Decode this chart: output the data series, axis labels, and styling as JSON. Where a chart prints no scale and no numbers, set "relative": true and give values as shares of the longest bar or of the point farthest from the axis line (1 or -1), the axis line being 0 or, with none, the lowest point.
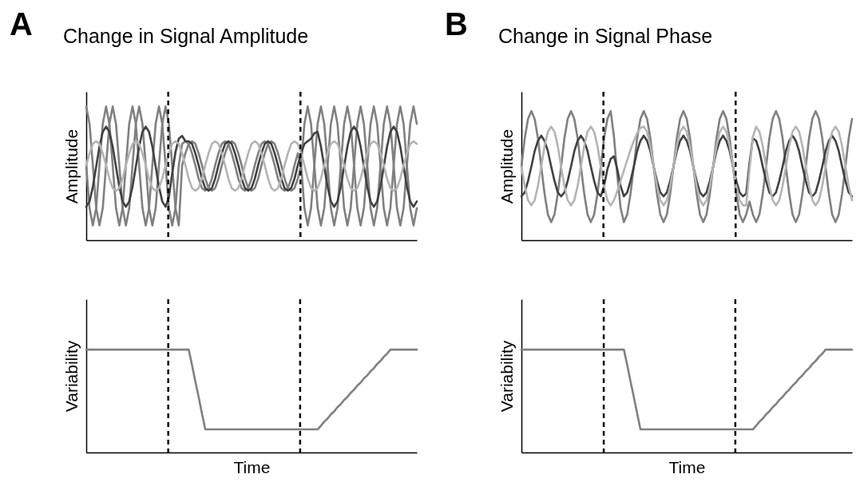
{
  "chart_data": [
    {
      "type": "line",
      "title": "Change in Signal Amplitude",
      "annotations": [
        "A"
      ],
      "ylabel": "Amplitude",
      "relative": true,
      "tick_labels": false,
      "categories": [
        null,
        null,
        null,
        null,
        null,
        null,
        null,
        null,
        null,
        null,
        null,
        null,
        null,
        null,
        null,
        null,
        null,
        null,
        null,
        null,
        null,
        null,
        null,
        null,
        null,
        null,
        null,
        null,
        null,
        null,
        null,
        null,
        null,
        null,
        null,
        null,
        null,
        null,
        null,
        null,
        null,
        null,
        null,
        null,
        null,
        null,
        null,
        null,
        null,
        null,
        null,
        null,
        null,
        null,
        null,
        null,
        null,
        null,
        null,
        null,
        null,
        null,
        null,
        null,
        null,
        null,
        null,
        null,
        null,
        null,
        null,
        null,
        null,
        null,
        null,
        null,
        null,
        null,
        null,
        null,
        null,
        null,
        null,
        null,
        null,
        null,
        null,
        null,
        null,
        null,
        null,
        null,
        null,
        null,
        null,
        null,
        null,
        null,
        null,
        null,
        null
      ],
      "series": [
        {
          "color": "#808080",
          "values": [
            1,
            0.87,
            0.56,
            0.24,
            0.11,
            0.24,
            0.56,
            0.87,
            1,
            0.87,
            0.56,
            0.24,
            0.11,
            0.24,
            0.56,
            0.87,
            1,
            0.87,
            0.56,
            0.24,
            0.11,
            0.24,
            0.56,
            0.87,
            1,
            0.87,
            0.56,
            0.24,
            0.11,
            0.56,
            0.65,
            0.72,
            0.74,
            0.72,
            0.65,
            0.56,
            0.46,
            0.39,
            0.37,
            0.39,
            0.46,
            0.56,
            0.65,
            0.72,
            0.74,
            0.72,
            0.65,
            0.56,
            0.46,
            0.39,
            0.37,
            0.39,
            0.46,
            0.56,
            0.65,
            0.72,
            0.74,
            0.72,
            0.65,
            0.56,
            0.46,
            0.39,
            0.37,
            0.39,
            0.46,
            0.56,
            0.87,
            1,
            0.87,
            0.56,
            0.24,
            0.11,
            0.24,
            0.56,
            0.87,
            1,
            0.87,
            0.56,
            0.24,
            0.11,
            0.24,
            0.56,
            0.87,
            1,
            0.87,
            0.56,
            0.24,
            0.11,
            0.24,
            0.56,
            0.87,
            1,
            0.87,
            0.56,
            0.24,
            0.11,
            0.24,
            0.56,
            0.87,
            1,
            0.87
          ]
        },
        {
          "color": "#808080",
          "values": [
            0.56,
            0.24,
            0.11,
            0.24,
            0.56,
            0.87,
            1,
            0.87,
            0.56,
            0.24,
            0.11,
            0.24,
            0.56,
            0.87,
            1,
            0.87,
            0.56,
            0.24,
            0.11,
            0.24,
            0.56,
            0.87,
            1,
            0.87,
            0.56,
            0.24,
            0.11,
            0.24,
            0.56,
            0.72,
            0.74,
            0.72,
            0.65,
            0.56,
            0.46,
            0.39,
            0.37,
            0.39,
            0.46,
            0.56,
            0.65,
            0.72,
            0.74,
            0.72,
            0.65,
            0.56,
            0.46,
            0.39,
            0.37,
            0.39,
            0.46,
            0.56,
            0.65,
            0.72,
            0.74,
            0.72,
            0.65,
            0.56,
            0.46,
            0.39,
            0.37,
            0.39,
            0.46,
            0.56,
            0.65,
            0.56,
            0.24,
            0.11,
            0.24,
            0.56,
            0.87,
            1,
            0.87,
            0.56,
            0.24,
            0.11,
            0.24,
            0.56,
            0.87,
            1,
            0.87,
            0.56,
            0.24,
            0.11,
            0.24,
            0.56,
            0.87,
            1,
            0.87,
            0.56,
            0.24,
            0.11,
            0.24,
            0.56,
            0.87,
            1,
            0.87,
            0.56,
            0.24,
            0.11,
            0.24
          ]
        },
        {
          "color": "#404040",
          "values": [
            0.25,
            0.29,
            0.4,
            0.55,
            0.7,
            0.81,
            0.85,
            0.81,
            0.7,
            0.55,
            0.4,
            0.29,
            0.25,
            0.29,
            0.4,
            0.55,
            0.7,
            0.81,
            0.85,
            0.81,
            0.7,
            0.55,
            0.4,
            0.29,
            0.25,
            0.32,
            0.5,
            0.66,
            0.76,
            0.78,
            0.74,
            0.74,
            0.72,
            0.65,
            0.56,
            0.46,
            0.39,
            0.37,
            0.39,
            0.46,
            0.56,
            0.65,
            0.72,
            0.74,
            0.72,
            0.65,
            0.56,
            0.46,
            0.39,
            0.37,
            0.39,
            0.46,
            0.56,
            0.65,
            0.72,
            0.74,
            0.72,
            0.65,
            0.56,
            0.46,
            0.39,
            0.37,
            0.39,
            0.46,
            0.56,
            0.65,
            0.72,
            0.74,
            0.76,
            0.8,
            0.81,
            0.7,
            0.55,
            0.4,
            0.29,
            0.25,
            0.29,
            0.4,
            0.55,
            0.7,
            0.81,
            0.85,
            0.81,
            0.7,
            0.55,
            0.4,
            0.29,
            0.25,
            0.29,
            0.4,
            0.55,
            0.7,
            0.81,
            0.85,
            0.81,
            0.7,
            0.55,
            0.4,
            0.29,
            0.25,
            0.29
          ]
        },
        {
          "color": "#b4b4b4",
          "values": [
            0.56,
            0.65,
            0.72,
            0.74,
            0.72,
            0.65,
            0.56,
            0.46,
            0.39,
            0.37,
            0.39,
            0.46,
            0.56,
            0.65,
            0.72,
            0.74,
            0.72,
            0.65,
            0.56,
            0.46,
            0.39,
            0.37,
            0.39,
            0.46,
            0.56,
            0.65,
            0.72,
            0.74,
            0.72,
            0.65,
            0.56,
            0.46,
            0.39,
            0.37,
            0.39,
            0.46,
            0.56,
            0.65,
            0.72,
            0.74,
            0.72,
            0.65,
            0.56,
            0.46,
            0.39,
            0.37,
            0.39,
            0.46,
            0.56,
            0.65,
            0.72,
            0.74,
            0.72,
            0.65,
            0.56,
            0.46,
            0.39,
            0.37,
            0.39,
            0.46,
            0.56,
            0.65,
            0.72,
            0.74,
            0.72,
            0.65,
            0.56,
            0.46,
            0.39,
            0.37,
            0.39,
            0.46,
            0.56,
            0.65,
            0.72,
            0.74,
            0.72,
            0.65,
            0.56,
            0.46,
            0.39,
            0.37,
            0.39,
            0.46,
            0.56,
            0.65,
            0.72,
            0.74,
            0.72,
            0.65,
            0.56,
            0.46,
            0.39,
            0.37,
            0.39,
            0.46,
            0.56,
            0.65,
            0.72,
            0.74,
            0.72
          ]
        }
      ]
    },
    {
      "type": "line",
      "xlabel": "Time",
      "ylabel": "Variability",
      "relative": true,
      "tick_labels": false,
      "categories": [
        null,
        null,
        null,
        null,
        null,
        null,
        null,
        null,
        null,
        null,
        null,
        null,
        null,
        null,
        null,
        null,
        null,
        null,
        null,
        null,
        null,
        null,
        null,
        null,
        null,
        null,
        null,
        null,
        null,
        null,
        null,
        null,
        null,
        null,
        null,
        null,
        null,
        null,
        null,
        null,
        null,
        null,
        null,
        null,
        null,
        null,
        null,
        null,
        null,
        null,
        null,
        null,
        null,
        null,
        null,
        null,
        null,
        null,
        null,
        null,
        null,
        null,
        null,
        null,
        null,
        null,
        null,
        null,
        null,
        null,
        null,
        null,
        null,
        null,
        null,
        null,
        null,
        null,
        null,
        null,
        null,
        null,
        null,
        null,
        null,
        null,
        null,
        null,
        null,
        null,
        null,
        null,
        null,
        null,
        null,
        null,
        null,
        null,
        null,
        null,
        null
      ],
      "series": [
        {
          "color": "#808080",
          "values": [
            1,
            1,
            1,
            1,
            1,
            1,
            1,
            1,
            1,
            1,
            1,
            1,
            1,
            1,
            1,
            1,
            1,
            1,
            1,
            1,
            1,
            1,
            1,
            1,
            1,
            1,
            1,
            1,
            1,
            1,
            1,
            1,
            0.85,
            0.69,
            0.54,
            0.38,
            0.225,
            0.225,
            0.225,
            0.225,
            0.225,
            0.225,
            0.225,
            0.225,
            0.225,
            0.225,
            0.225,
            0.225,
            0.225,
            0.225,
            0.225,
            0.225,
            0.225,
            0.225,
            0.225,
            0.225,
            0.225,
            0.225,
            0.225,
            0.225,
            0.225,
            0.225,
            0.225,
            0.225,
            0.225,
            0.225,
            0.225,
            0.225,
            0.225,
            0.225,
            0.225,
            0.26,
            0.3,
            0.33,
            0.37,
            0.4,
            0.44,
            0.47,
            0.51,
            0.54,
            0.58,
            0.61,
            0.65,
            0.68,
            0.72,
            0.75,
            0.79,
            0.82,
            0.86,
            0.89,
            0.93,
            0.96,
            1,
            1,
            1,
            1,
            1,
            1,
            1,
            1,
            1
          ]
        }
      ]
    },
    {
      "type": "line",
      "title": "Change in Signal Phase",
      "annotations": [
        "B"
      ],
      "ylabel": "Amplitude",
      "relative": true,
      "tick_labels": false,
      "categories": [
        null,
        null,
        null,
        null,
        null,
        null,
        null,
        null,
        null,
        null,
        null,
        null,
        null,
        null,
        null,
        null,
        null,
        null,
        null,
        null,
        null,
        null,
        null,
        null,
        null,
        null,
        null,
        null,
        null,
        null,
        null,
        null,
        null,
        null,
        null,
        null,
        null,
        null,
        null,
        null,
        null,
        null,
        null,
        null,
        null,
        null,
        null,
        null,
        null,
        null,
        null,
        null,
        null,
        null,
        null,
        null,
        null,
        null,
        null,
        null,
        null,
        null,
        null,
        null,
        null,
        null,
        null,
        null,
        null,
        null,
        null,
        null,
        null,
        null,
        null,
        null,
        null,
        null,
        null,
        null,
        null,
        null,
        null,
        null,
        null,
        null,
        null,
        null,
        null,
        null,
        null,
        null,
        null,
        null,
        null,
        null,
        null,
        null,
        null,
        null,
        null
      ],
      "series": [
        {
          "color": "#808080",
          "values": [
            0.57,
            0.79,
            0.94,
            1,
            0.94,
            0.79,
            0.57,
            0.36,
            0.2,
            0.14,
            0.2,
            0.36,
            0.57,
            0.79,
            0.94,
            1,
            0.94,
            0.79,
            0.57,
            0.36,
            0.2,
            0.14,
            0.2,
            0.36,
            0.57,
            0.79,
            0.94,
            1,
            0.8,
            0.5,
            0.25,
            0.14,
            0.2,
            0.36,
            0.57,
            0.79,
            0.94,
            1,
            0.94,
            0.79,
            0.57,
            0.36,
            0.2,
            0.14,
            0.2,
            0.36,
            0.57,
            0.79,
            0.94,
            1,
            0.94,
            0.79,
            0.57,
            0.36,
            0.2,
            0.14,
            0.2,
            0.36,
            0.57,
            0.79,
            0.94,
            1,
            0.94,
            0.79,
            0.57,
            0.36,
            0.2,
            0.14,
            0.2,
            0.3,
            0.2,
            0.14,
            0.2,
            0.36,
            0.57,
            0.79,
            0.94,
            1,
            0.94,
            0.79,
            0.57,
            0.36,
            0.2,
            0.14,
            0.2,
            0.36,
            0.57,
            0.79,
            0.94,
            1,
            0.94,
            0.79,
            0.57,
            0.36,
            0.2,
            0.14,
            0.2,
            0.36,
            0.57,
            0.79,
            0.94
          ]
        },
        {
          "color": "#404040",
          "values": [
            0.34,
            0.37,
            0.46,
            0.57,
            0.69,
            0.77,
            0.81,
            0.77,
            0.69,
            0.57,
            0.46,
            0.37,
            0.34,
            0.37,
            0.46,
            0.57,
            0.69,
            0.77,
            0.81,
            0.77,
            0.69,
            0.57,
            0.46,
            0.37,
            0.34,
            0.42,
            0.55,
            0.63,
            0.65,
            0.55,
            0.42,
            0.34,
            0.37,
            0.46,
            0.57,
            0.69,
            0.77,
            0.81,
            0.77,
            0.69,
            0.57,
            0.46,
            0.37,
            0.34,
            0.37,
            0.46,
            0.57,
            0.69,
            0.77,
            0.81,
            0.77,
            0.69,
            0.57,
            0.46,
            0.37,
            0.34,
            0.37,
            0.46,
            0.57,
            0.69,
            0.77,
            0.81,
            0.77,
            0.69,
            0.57,
            0.46,
            0.37,
            0.34,
            0.36,
            0.6,
            0.79,
            0.77,
            0.69,
            0.57,
            0.46,
            0.37,
            0.34,
            0.37,
            0.46,
            0.57,
            0.69,
            0.77,
            0.81,
            0.77,
            0.69,
            0.57,
            0.46,
            0.37,
            0.34,
            0.37,
            0.46,
            0.57,
            0.69,
            0.77,
            0.81,
            0.77,
            0.69,
            0.57,
            0.46,
            0.37,
            0.34
          ]
        },
        {
          "color": "#b4b4b4",
          "values": [
            0.57,
            0.42,
            0.31,
            0.27,
            0.31,
            0.42,
            0.57,
            0.73,
            0.84,
            0.88,
            0.84,
            0.73,
            0.57,
            0.42,
            0.31,
            0.27,
            0.31,
            0.42,
            0.57,
            0.73,
            0.84,
            0.88,
            0.84,
            0.73,
            0.57,
            0.42,
            0.31,
            0.27,
            0.31,
            0.38,
            0.46,
            0.54,
            0.62,
            0.7,
            0.77,
            0.83,
            0.87,
            0.88,
            0.84,
            0.73,
            0.57,
            0.42,
            0.31,
            0.27,
            0.31,
            0.42,
            0.57,
            0.73,
            0.84,
            0.88,
            0.84,
            0.73,
            0.57,
            0.42,
            0.31,
            0.27,
            0.31,
            0.42,
            0.57,
            0.73,
            0.84,
            0.88,
            0.84,
            0.73,
            0.57,
            0.42,
            0.31,
            0.27,
            0.27,
            0.55,
            0.8,
            0.88,
            0.84,
            0.73,
            0.57,
            0.42,
            0.31,
            0.27,
            0.31,
            0.42,
            0.57,
            0.73,
            0.84,
            0.88,
            0.84,
            0.73,
            0.57,
            0.42,
            0.31,
            0.27,
            0.31,
            0.42,
            0.57,
            0.73,
            0.84,
            0.88,
            0.84,
            0.73,
            0.57,
            0.42,
            0.31
          ]
        }
      ]
    },
    {
      "type": "line",
      "xlabel": "Time",
      "ylabel": "Variability",
      "relative": true,
      "tick_labels": false,
      "categories": [
        null,
        null,
        null,
        null,
        null,
        null,
        null,
        null,
        null,
        null,
        null,
        null,
        null,
        null,
        null,
        null,
        null,
        null,
        null,
        null,
        null,
        null,
        null,
        null,
        null,
        null,
        null,
        null,
        null,
        null,
        null,
        null,
        null,
        null,
        null,
        null,
        null,
        null,
        null,
        null,
        null,
        null,
        null,
        null,
        null,
        null,
        null,
        null,
        null,
        null,
        null,
        null,
        null,
        null,
        null,
        null,
        null,
        null,
        null,
        null,
        null,
        null,
        null,
        null,
        null,
        null,
        null,
        null,
        null,
        null,
        null,
        null,
        null,
        null,
        null,
        null,
        null,
        null,
        null,
        null,
        null,
        null,
        null,
        null,
        null,
        null,
        null,
        null,
        null,
        null,
        null,
        null,
        null,
        null,
        null,
        null,
        null,
        null,
        null,
        null,
        null
      ],
      "series": [
        {
          "color": "#808080",
          "values": [
            1,
            1,
            1,
            1,
            1,
            1,
            1,
            1,
            1,
            1,
            1,
            1,
            1,
            1,
            1,
            1,
            1,
            1,
            1,
            1,
            1,
            1,
            1,
            1,
            1,
            1,
            1,
            1,
            1,
            1,
            1,
            1,
            0.85,
            0.69,
            0.54,
            0.38,
            0.225,
            0.225,
            0.225,
            0.225,
            0.225,
            0.225,
            0.225,
            0.225,
            0.225,
            0.225,
            0.225,
            0.225,
            0.225,
            0.225,
            0.225,
            0.225,
            0.225,
            0.225,
            0.225,
            0.225,
            0.225,
            0.225,
            0.225,
            0.225,
            0.225,
            0.225,
            0.225,
            0.225,
            0.225,
            0.225,
            0.225,
            0.225,
            0.225,
            0.225,
            0.225,
            0.26,
            0.3,
            0.33,
            0.37,
            0.4,
            0.44,
            0.47,
            0.51,
            0.54,
            0.58,
            0.61,
            0.65,
            0.68,
            0.72,
            0.75,
            0.79,
            0.82,
            0.86,
            0.89,
            0.93,
            0.96,
            1,
            1,
            1,
            1,
            1,
            1,
            1,
            1,
            1
          ]
        }
      ]
    }
  ]
}
